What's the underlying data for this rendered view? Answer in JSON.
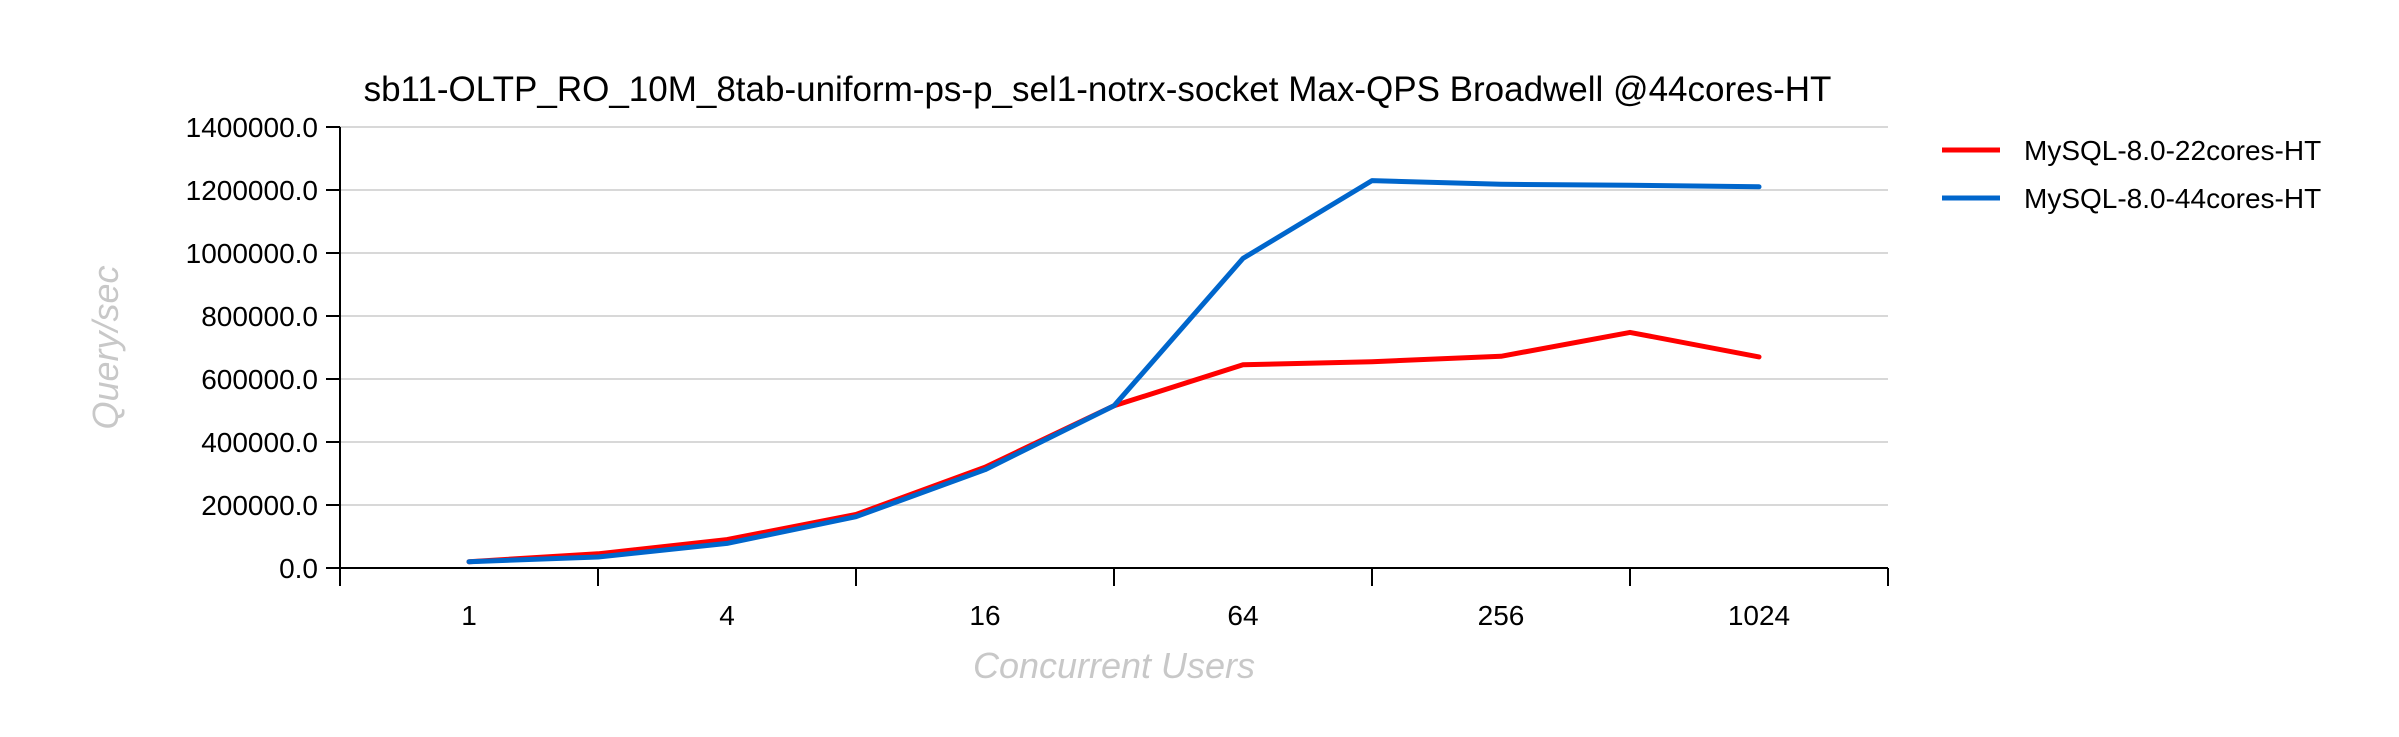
{
  "chart_data": {
    "type": "line",
    "title": "sb11-OLTP_RO_10M_8tab-uniform-ps-p_sel1-notrx-socket Max-QPS Broadwell @44cores-HT",
    "xlabel": "Concurrent Users",
    "ylabel": "Query/sec",
    "x_scale": "log2",
    "x": [
      1,
      2,
      4,
      8,
      16,
      32,
      64,
      128,
      256,
      512,
      1024
    ],
    "xlim": [
      0.5,
      2048
    ],
    "x_tick_marks": [
      0.5,
      2,
      8,
      32,
      128,
      512,
      2048
    ],
    "x_tick_labels": [
      "1",
      "4",
      "16",
      "64",
      "256",
      "1024"
    ],
    "x_tick_label_values": [
      1,
      4,
      16,
      64,
      256,
      1024
    ],
    "ylim": [
      0,
      1400000
    ],
    "y_ticks": [
      0,
      200000,
      400000,
      600000,
      800000,
      1000000,
      1200000,
      1400000
    ],
    "y_tick_labels": [
      "0.0",
      "200000.0",
      "400000.0",
      "600000.0",
      "800000.0",
      "1000000.0",
      "1200000.0",
      "1400000.0"
    ],
    "grid": true,
    "legend_position": "right",
    "series": [
      {
        "name": "MySQL-8.0-22cores-HT",
        "color": "#ff0000",
        "values": [
          20000,
          45000,
          90000,
          170000,
          320000,
          515000,
          645000,
          655000,
          672000,
          748000,
          670000
        ]
      },
      {
        "name": "MySQL-8.0-44cores-HT",
        "color": "#0066cc",
        "values": [
          20000,
          35000,
          78000,
          163000,
          312000,
          515000,
          983000,
          1230000,
          1218000,
          1215000,
          1210000
        ]
      }
    ]
  }
}
